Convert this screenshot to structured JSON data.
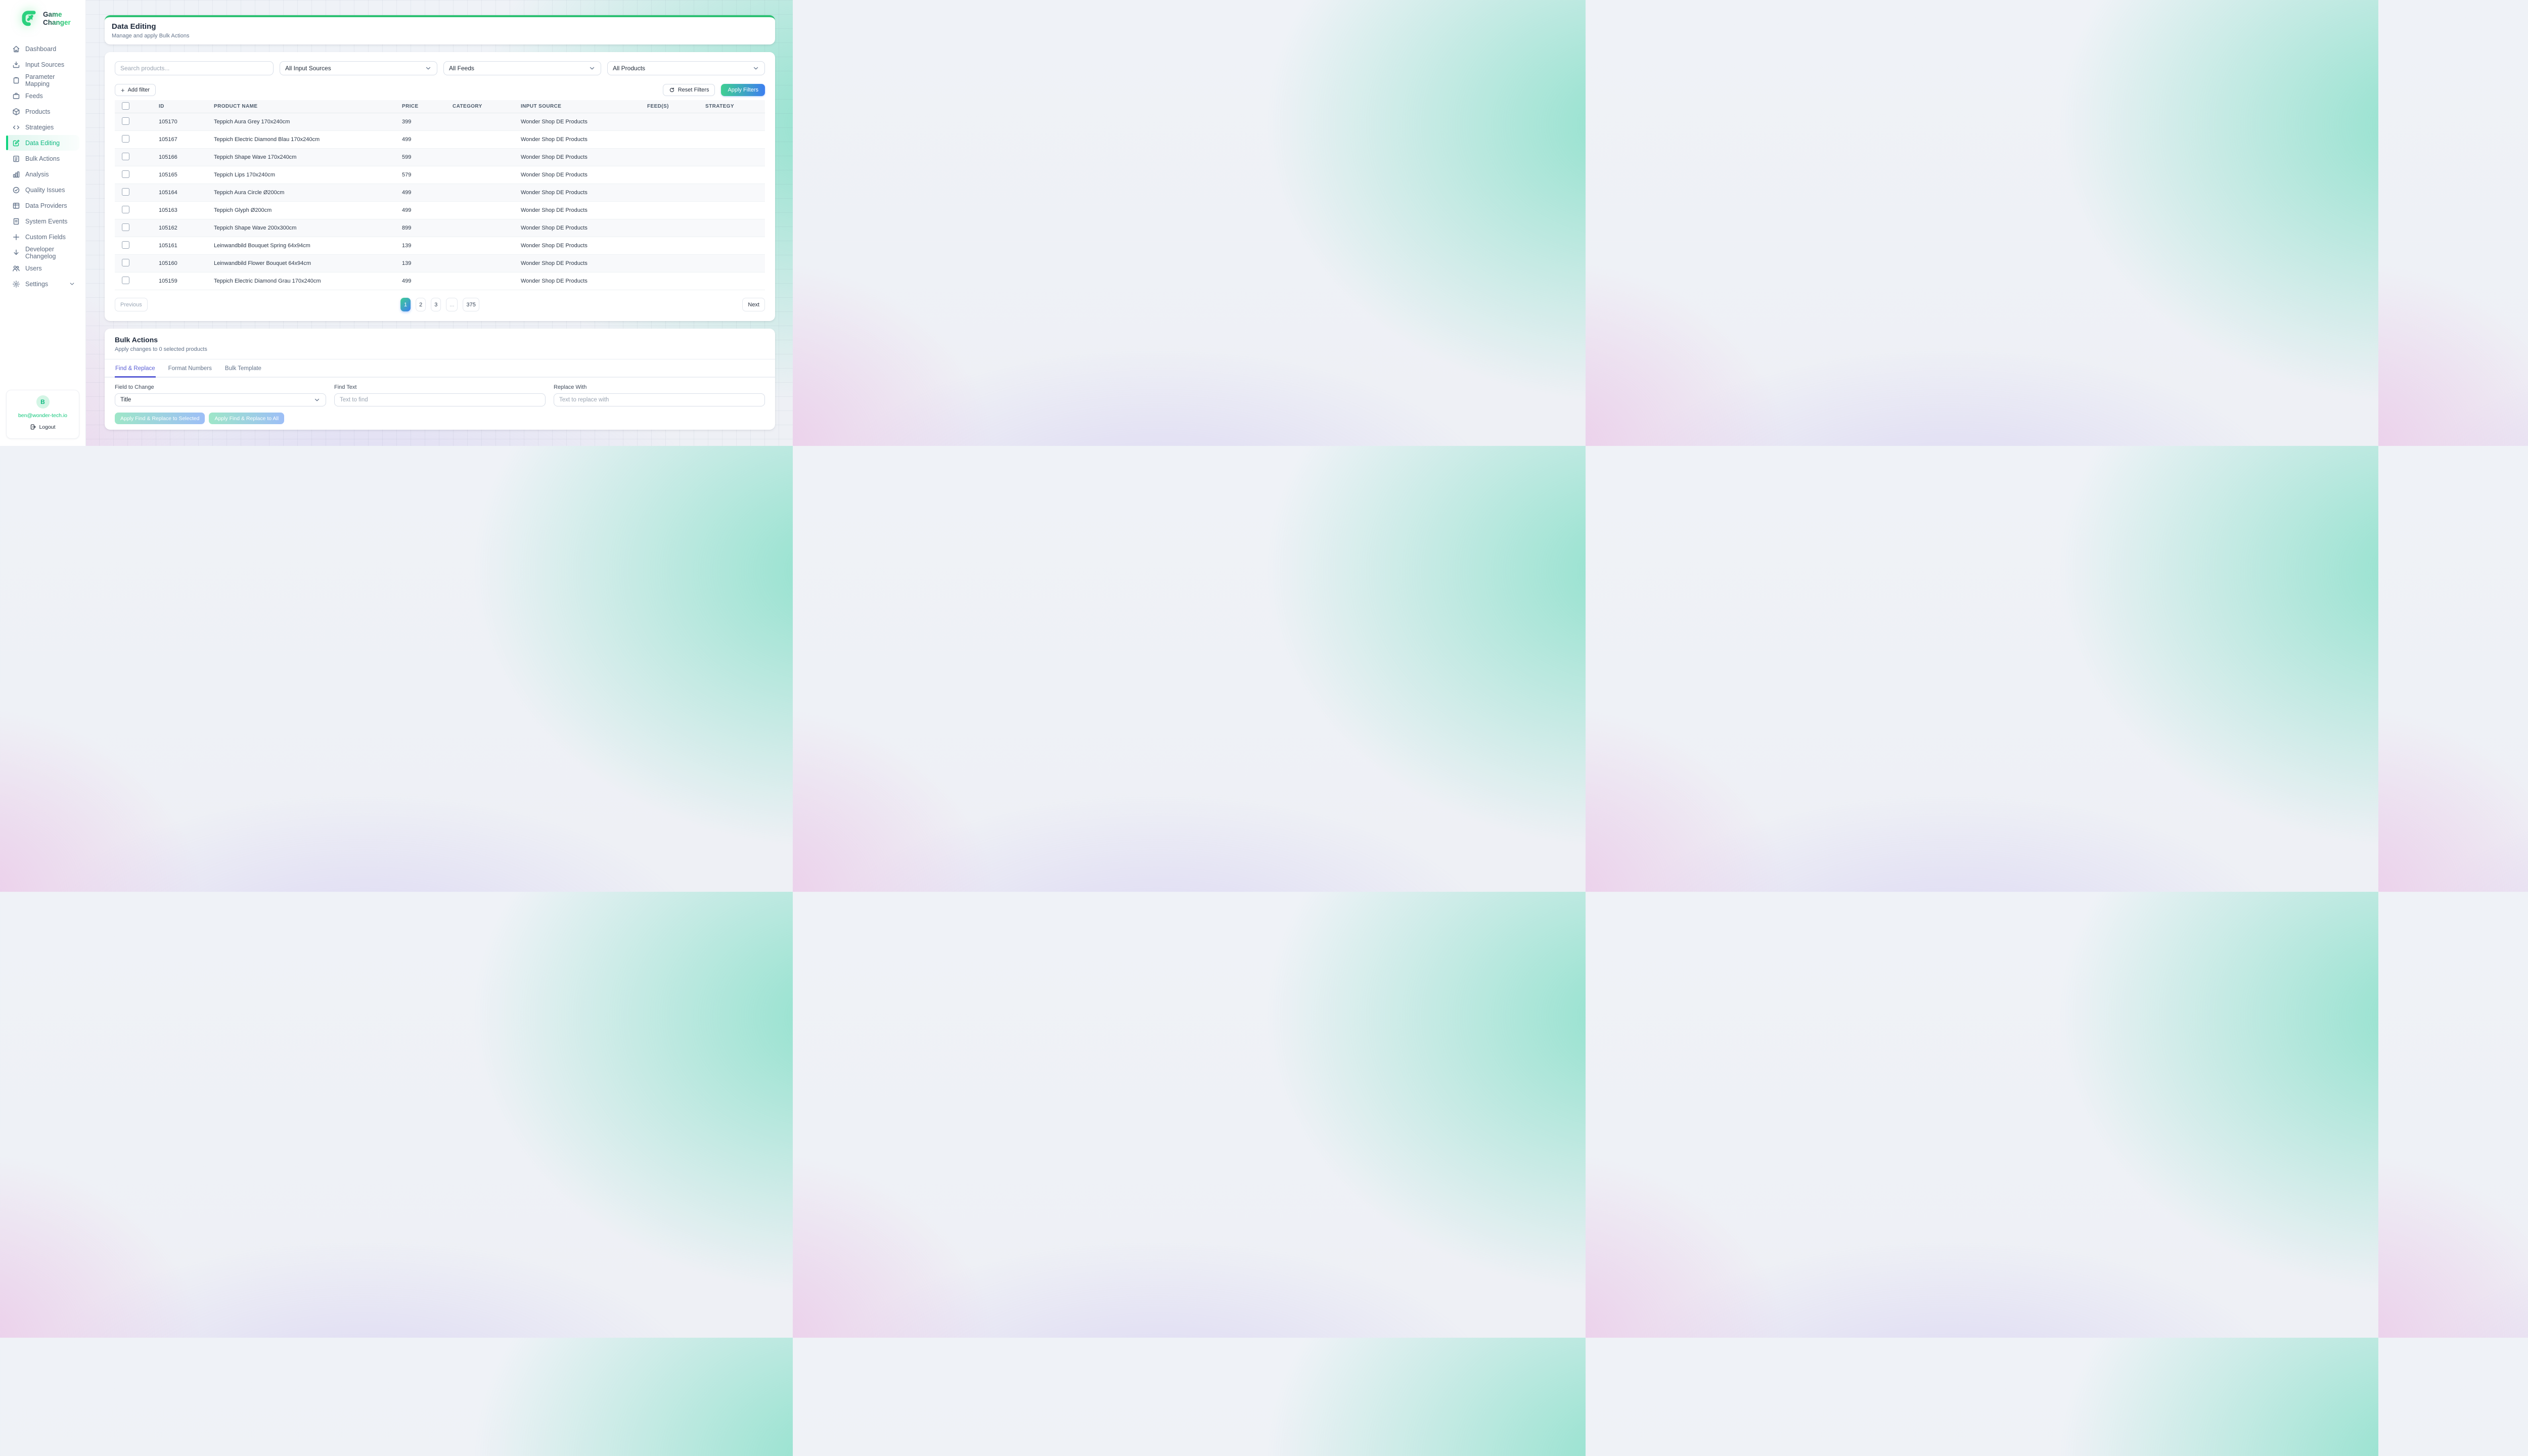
{
  "sidebar": {
    "logo": {
      "line1": "Game",
      "line2": "Changer"
    },
    "items": [
      {
        "key": "dashboard",
        "label": "Dashboard",
        "icon": "home",
        "active": false
      },
      {
        "key": "input-sources",
        "label": "Input Sources",
        "icon": "inbox",
        "active": false
      },
      {
        "key": "parameter-mapping",
        "label": "Parameter Mapping",
        "icon": "clipboard",
        "active": false
      },
      {
        "key": "feeds",
        "label": "Feeds",
        "icon": "briefcase",
        "active": false
      },
      {
        "key": "products",
        "label": "Products",
        "icon": "box",
        "active": false
      },
      {
        "key": "strategies",
        "label": "Strategies",
        "icon": "code",
        "active": false
      },
      {
        "key": "data-editing",
        "label": "Data Editing",
        "icon": "edit",
        "active": true
      },
      {
        "key": "bulk-actions",
        "label": "Bulk Actions",
        "icon": "list",
        "active": false
      },
      {
        "key": "analysis",
        "label": "Analysis",
        "icon": "chart",
        "active": false
      },
      {
        "key": "quality-issues",
        "label": "Quality Issues",
        "icon": "check-circle",
        "active": false
      },
      {
        "key": "data-providers",
        "label": "Data Providers",
        "icon": "grid",
        "active": false
      },
      {
        "key": "system-events",
        "label": "System Events",
        "icon": "file",
        "active": false
      },
      {
        "key": "custom-fields",
        "label": "Custom Fields",
        "icon": "plus",
        "active": false
      },
      {
        "key": "developer-changelog",
        "label": "Developer Changelog",
        "icon": "arrow-down",
        "active": false
      },
      {
        "key": "users",
        "label": "Users",
        "icon": "users",
        "active": false
      },
      {
        "key": "settings",
        "label": "Settings",
        "icon": "gear",
        "active": false,
        "chevron": true
      }
    ],
    "user": {
      "initial": "B",
      "email": "ben@wonder-tech.io",
      "logout": "Logout"
    }
  },
  "header": {
    "title": "Data Editing",
    "subtitle": "Manage and apply Bulk Actions"
  },
  "filters": {
    "search_placeholder": "Search products...",
    "input_sources_value": "All Input Sources",
    "feeds_value": "All Feeds",
    "products_value": "All Products",
    "add_filter": "Add filter",
    "reset": "Reset Filters",
    "apply": "Apply Filters"
  },
  "table": {
    "columns": [
      "ID",
      "PRODUCT NAME",
      "PRICE",
      "CATEGORY",
      "INPUT SOURCE",
      "FEED(S)",
      "STRATEGY"
    ],
    "rows": [
      {
        "id": "105170",
        "name": "Teppich Aura Grey 170x240cm",
        "price": "399",
        "category": "",
        "input_source": "Wonder Shop DE Products",
        "feeds": "",
        "strategy": ""
      },
      {
        "id": "105167",
        "name": "Teppich Electric Diamond Blau 170x240cm",
        "price": "499",
        "category": "",
        "input_source": "Wonder Shop DE Products",
        "feeds": "",
        "strategy": ""
      },
      {
        "id": "105166",
        "name": "Teppich Shape Wave 170x240cm",
        "price": "599",
        "category": "",
        "input_source": "Wonder Shop DE Products",
        "feeds": "",
        "strategy": ""
      },
      {
        "id": "105165",
        "name": "Teppich Lips 170x240cm",
        "price": "579",
        "category": "",
        "input_source": "Wonder Shop DE Products",
        "feeds": "",
        "strategy": ""
      },
      {
        "id": "105164",
        "name": "Teppich Aura Circle Ø200cm",
        "price": "499",
        "category": "",
        "input_source": "Wonder Shop DE Products",
        "feeds": "",
        "strategy": ""
      },
      {
        "id": "105163",
        "name": "Teppich Glyph Ø200cm",
        "price": "499",
        "category": "",
        "input_source": "Wonder Shop DE Products",
        "feeds": "",
        "strategy": ""
      },
      {
        "id": "105162",
        "name": "Teppich Shape Wave 200x300cm",
        "price": "899",
        "category": "",
        "input_source": "Wonder Shop DE Products",
        "feeds": "",
        "strategy": ""
      },
      {
        "id": "105161",
        "name": "Leinwandbild Bouquet Spring 64x94cm",
        "price": "139",
        "category": "",
        "input_source": "Wonder Shop DE Products",
        "feeds": "",
        "strategy": ""
      },
      {
        "id": "105160",
        "name": "Leinwandbild Flower Bouquet 64x94cm",
        "price": "139",
        "category": "",
        "input_source": "Wonder Shop DE Products",
        "feeds": "",
        "strategy": ""
      },
      {
        "id": "105159",
        "name": "Teppich Electric Diamond Grau 170x240cm",
        "price": "499",
        "category": "",
        "input_source": "Wonder Shop DE Products",
        "feeds": "",
        "strategy": ""
      }
    ]
  },
  "pagination": {
    "previous": "Previous",
    "pages": [
      "1",
      "2",
      "3",
      "...",
      "375"
    ],
    "active": "1",
    "next": "Next"
  },
  "bulk": {
    "title": "Bulk Actions",
    "subtitle": "Apply changes to 0 selected products",
    "tabs": [
      "Find & Replace",
      "Format Numbers",
      "Bulk Template"
    ],
    "active_tab": "Find & Replace",
    "field_label": "Field to Change",
    "field_value": "Title",
    "find_label": "Find Text",
    "find_placeholder": "Text to find",
    "replace_label": "Replace With",
    "replace_placeholder": "Text to replace with",
    "apply_selected": "Apply Find & Replace to Selected",
    "apply_all": "Apply Find & Replace to All"
  },
  "colors": {
    "accent_green": "#10b981",
    "header_bar_green": "#2cc073",
    "gradient_start": "#3fcf92",
    "gradient_end": "#3d7ff0",
    "active_tab_indigo": "#5b5fd6",
    "email_green": "#10c77b"
  }
}
